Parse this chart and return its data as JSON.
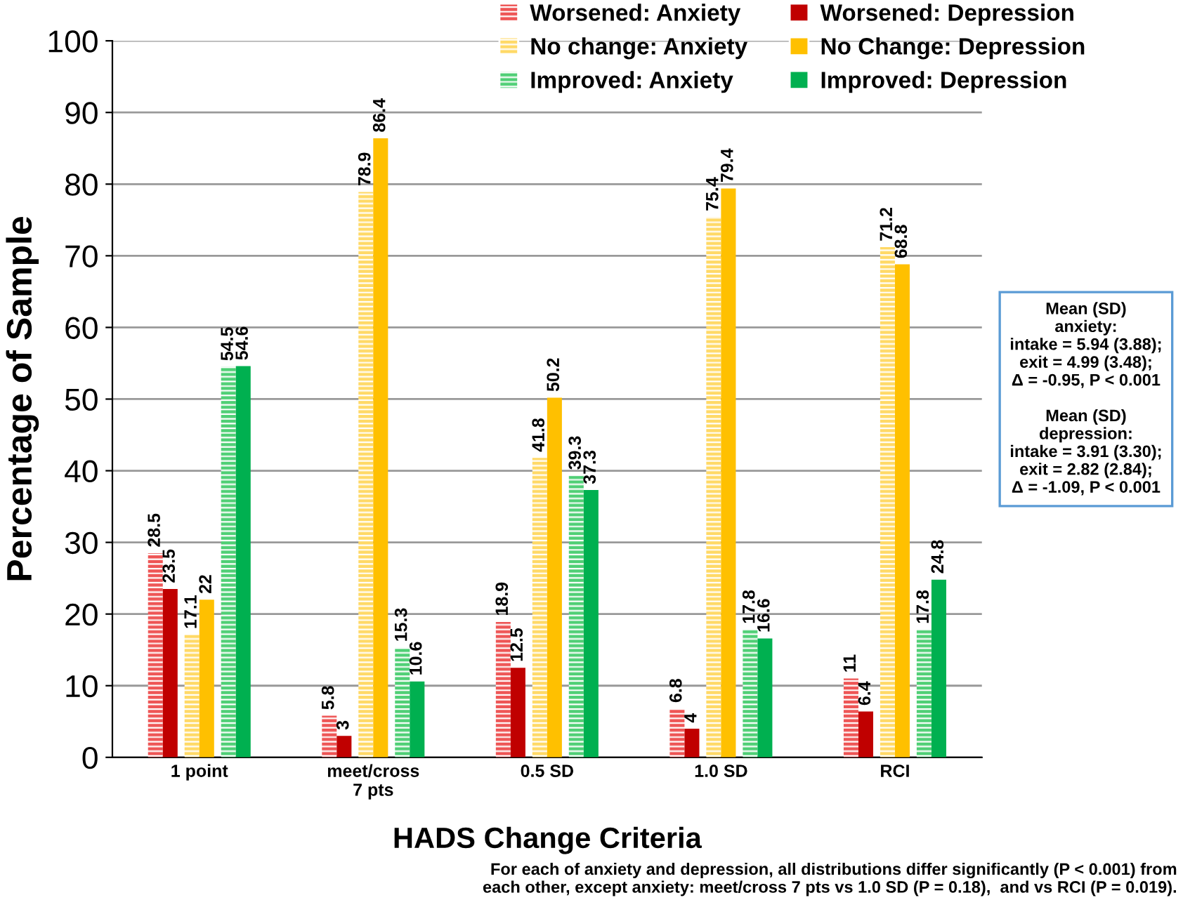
{
  "chart_data": {
    "type": "bar",
    "xlabel": "HADS Change Criteria",
    "ylabel": "Percentage of Sample",
    "categories": [
      "1 point",
      "meet/cross\n7 pts",
      "0.5 SD",
      "1.0 SD",
      "RCI"
    ],
    "series": [
      {
        "name": "Worsened: Anxiety",
        "color": "#ee5555",
        "values": [
          28.5,
          5.8,
          18.9,
          6.8,
          11
        ]
      },
      {
        "name": "Worsened: Depression",
        "color": "#c00000",
        "values": [
          23.5,
          3,
          12.5,
          4,
          6.4
        ]
      },
      {
        "name": "No change: Anxiety",
        "color": "#ffd966",
        "values": [
          17.1,
          78.9,
          41.8,
          75.4,
          71.2
        ]
      },
      {
        "name": "No Change: Depression",
        "color": "#ffc000",
        "values": [
          22,
          86.4,
          50.2,
          79.4,
          68.8
        ]
      },
      {
        "name": "Improved: Anxiety",
        "color": "#4fcf75",
        "values": [
          54.5,
          15.3,
          39.3,
          17.8,
          17.8
        ]
      },
      {
        "name": "Improved: Depression",
        "color": "#00b050",
        "values": [
          54.6,
          10.6,
          37.3,
          16.6,
          24.8
        ]
      }
    ],
    "ylim": [
      0,
      100
    ],
    "yticks": [
      0,
      10,
      20,
      30,
      40,
      50,
      60,
      70,
      80,
      90,
      100
    ],
    "grid": "y",
    "legend": "top right",
    "data_labels": true,
    "annotations": [
      "Mean (SD)\nanxiety:\nintake = 5.94 (3.88);\nexit = 4.99 (3.48);\nΔ = -0.95, P < 0.001\n\nMean (SD)\ndepression:\nintake = 3.91 (3.30);\nexit = 2.82 (2.84);\nΔ = -1.09, P < 0.001",
      "For each of anxiety and depression, all distributions differ significantly (P < 0.001) from\neach other, except anxiety: meet/cross 7 pts vs 1.0 SD (P = 0.18),  and vs RCI (P = 0.019)."
    ]
  }
}
